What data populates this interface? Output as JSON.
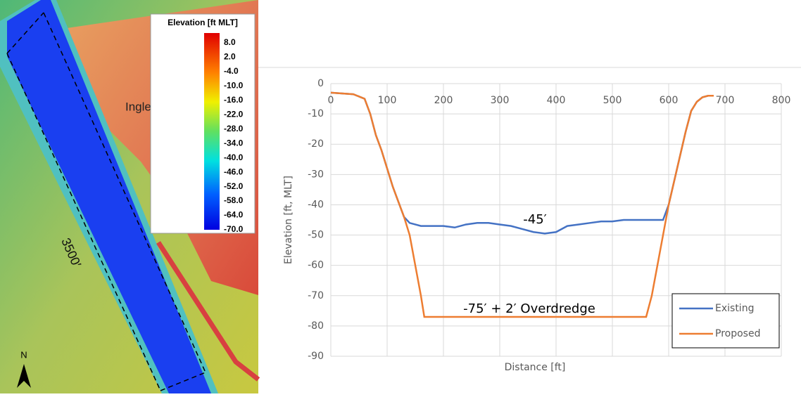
{
  "map": {
    "colorbar_title": "Elevation [ft MLT]",
    "colorbar_labels": [
      "8.0",
      "2.0",
      "-4.0",
      "-10.0",
      "-16.0",
      "-22.0",
      "-28.0",
      "-34.0",
      "-40.0",
      "-46.0",
      "-52.0",
      "-58.0",
      "-64.0",
      "-70.0"
    ],
    "place_label": "Ingleside",
    "length_label": "3500′",
    "north_label": "N"
  },
  "chart_data": {
    "type": "line",
    "x_label": "Distance [ft]",
    "y_label": "Elevation [ft, MLT]",
    "xlim": [
      0,
      800
    ],
    "xticks": [
      0,
      100,
      200,
      300,
      400,
      500,
      600,
      700,
      800
    ],
    "ylim": [
      -90,
      0
    ],
    "yticks": [
      0,
      -10,
      -20,
      -30,
      -40,
      -50,
      -60,
      -70,
      -80,
      -90
    ],
    "grid": true,
    "legend": "lower right",
    "annotations": [
      "-45′",
      "-75′ + 2′ Overdredge"
    ],
    "series": [
      {
        "name": "Existing",
        "color": "#4472c4",
        "x": [
          0,
          40,
          60,
          70,
          80,
          90,
          100,
          110,
          120,
          130,
          140,
          150,
          160,
          180,
          200,
          220,
          240,
          260,
          280,
          300,
          320,
          340,
          360,
          380,
          400,
          420,
          440,
          460,
          480,
          500,
          520,
          540,
          560,
          580,
          590,
          600,
          610,
          620,
          630,
          640,
          650,
          660,
          670,
          680
        ],
        "values": [
          -3,
          -3.5,
          -5,
          -10,
          -17,
          -22,
          -28,
          -34,
          -39,
          -44,
          -46,
          -46.5,
          -47,
          -47,
          -47,
          -47.5,
          -46.5,
          -46,
          -46,
          -46.5,
          -47,
          -48,
          -49,
          -49.5,
          -49,
          -47,
          -46.5,
          -46,
          -45.5,
          -45.5,
          -45,
          -45,
          -45,
          -45,
          -45,
          -40,
          -32,
          -24,
          -16,
          -9,
          -6,
          -4.5,
          -4,
          -4
        ]
      },
      {
        "name": "Proposed",
        "color": "#ed7d31",
        "x": [
          0,
          40,
          60,
          70,
          80,
          90,
          100,
          110,
          120,
          130,
          140,
          150,
          160,
          166,
          560,
          570,
          580,
          590,
          600,
          610,
          620,
          630,
          640,
          650,
          660,
          670,
          680
        ],
        "values": [
          -3,
          -3.5,
          -5,
          -10,
          -17,
          -22,
          -28,
          -34,
          -39,
          -44,
          -50,
          -60,
          -70,
          -77,
          -77,
          -70,
          -60,
          -50,
          -40,
          -32,
          -24,
          -16,
          -9,
          -6,
          -4.5,
          -4,
          -4
        ]
      }
    ]
  }
}
